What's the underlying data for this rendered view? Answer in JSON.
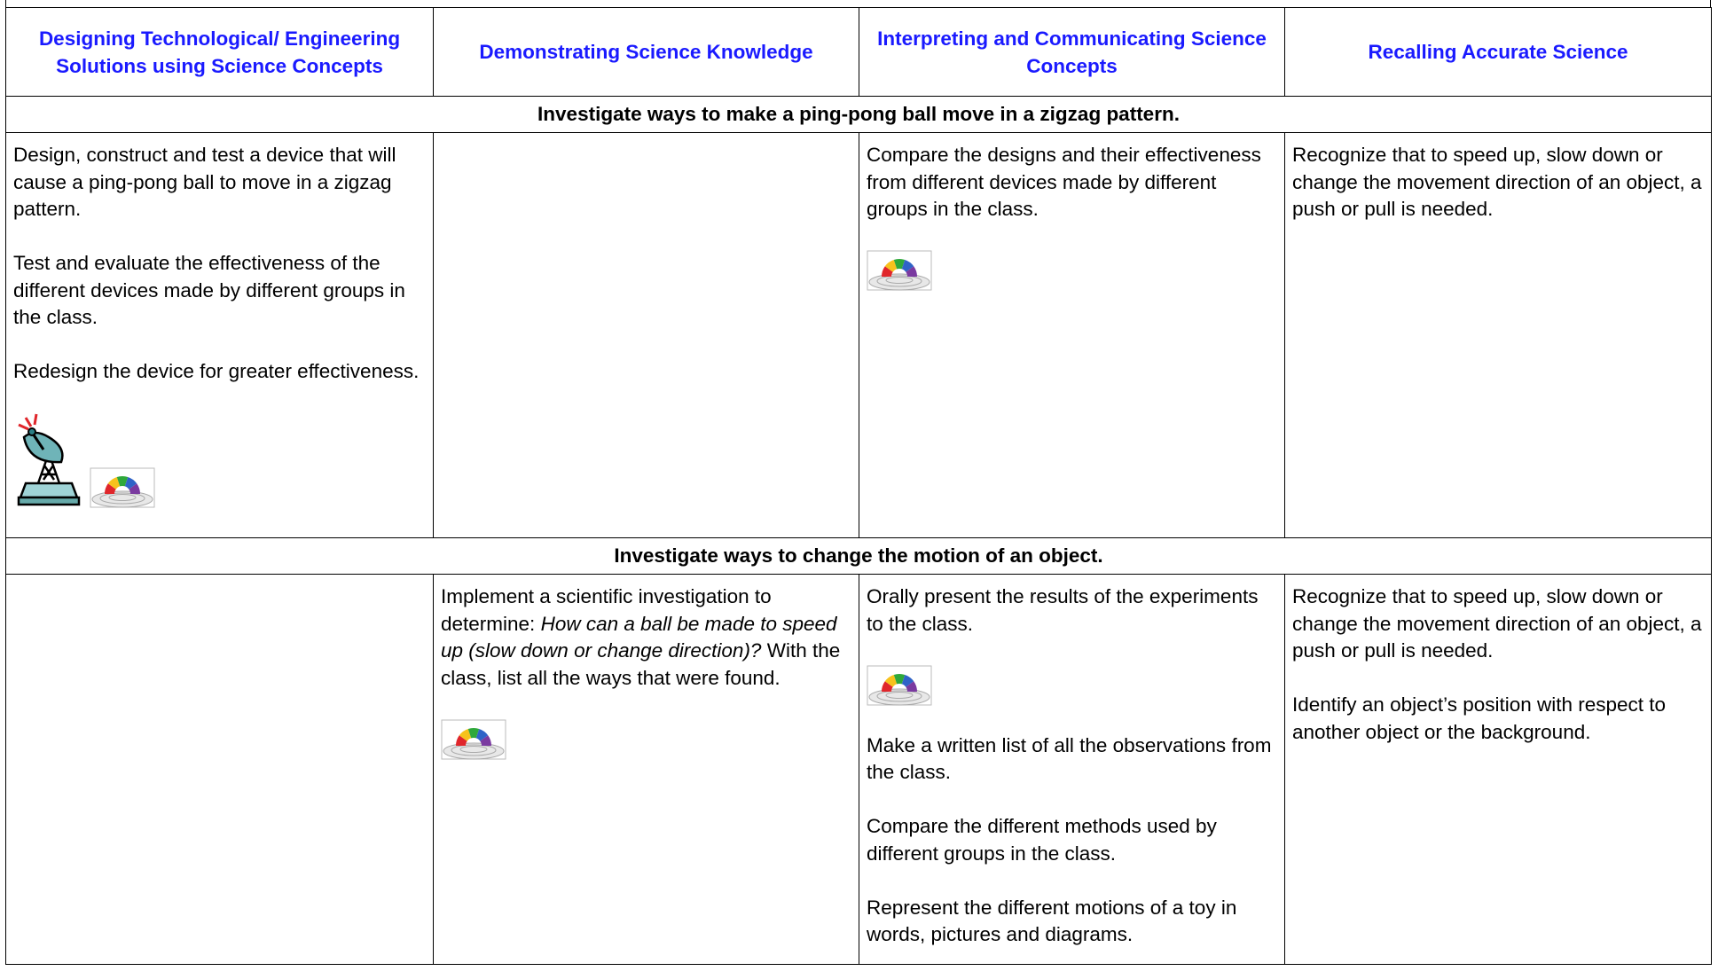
{
  "table": {
    "headers": [
      "Designing Technological/ Engineering Solutions using Science Concepts",
      "Demonstrating Science Knowledge",
      "Interpreting and Communicating Science Concepts",
      "Recalling Accurate Science"
    ],
    "sections": [
      {
        "title": "Investigate ways to make a ping-pong ball move in a zigzag pattern.",
        "cells": [
          [
            "Design, construct and test a device that will cause a ping-pong ball to move in a zigzag pattern.",
            "Test and evaluate the effectiveness of the different devices made by different groups in the class.",
            "Redesign the device for greater effectiveness."
          ],
          [],
          [
            "Compare the designs and their effectiveness from different devices made by different groups in the class."
          ],
          [
            "Recognize that to speed up, slow down or change the movement direction of an object, a push or pull is needed."
          ]
        ]
      },
      {
        "title": "Investigate ways to change the motion of an object.",
        "cells": [
          [],
          [
            [
              {
                "text": "Implement a scientific investigation to determine:"
              },
              {
                "text": "How can a ball be made to speed up (slow down or change direction)?",
                "italic": true
              },
              {
                "text": "With the class, list all the ways that were found."
              }
            ]
          ],
          [
            "Orally present the results of the experiments to the class.",
            "Make a written list of all the observations from the class.",
            "Compare the different methods used by different groups in the class.",
            "Represent the different motions of a toy in words, pictures and diagrams."
          ],
          [
            "Recognize that to speed up, slow down or change the movement direction of an object, a push or pull is needed.",
            "Identify an object’s position with respect to another object or the background."
          ]
        ]
      }
    ]
  }
}
